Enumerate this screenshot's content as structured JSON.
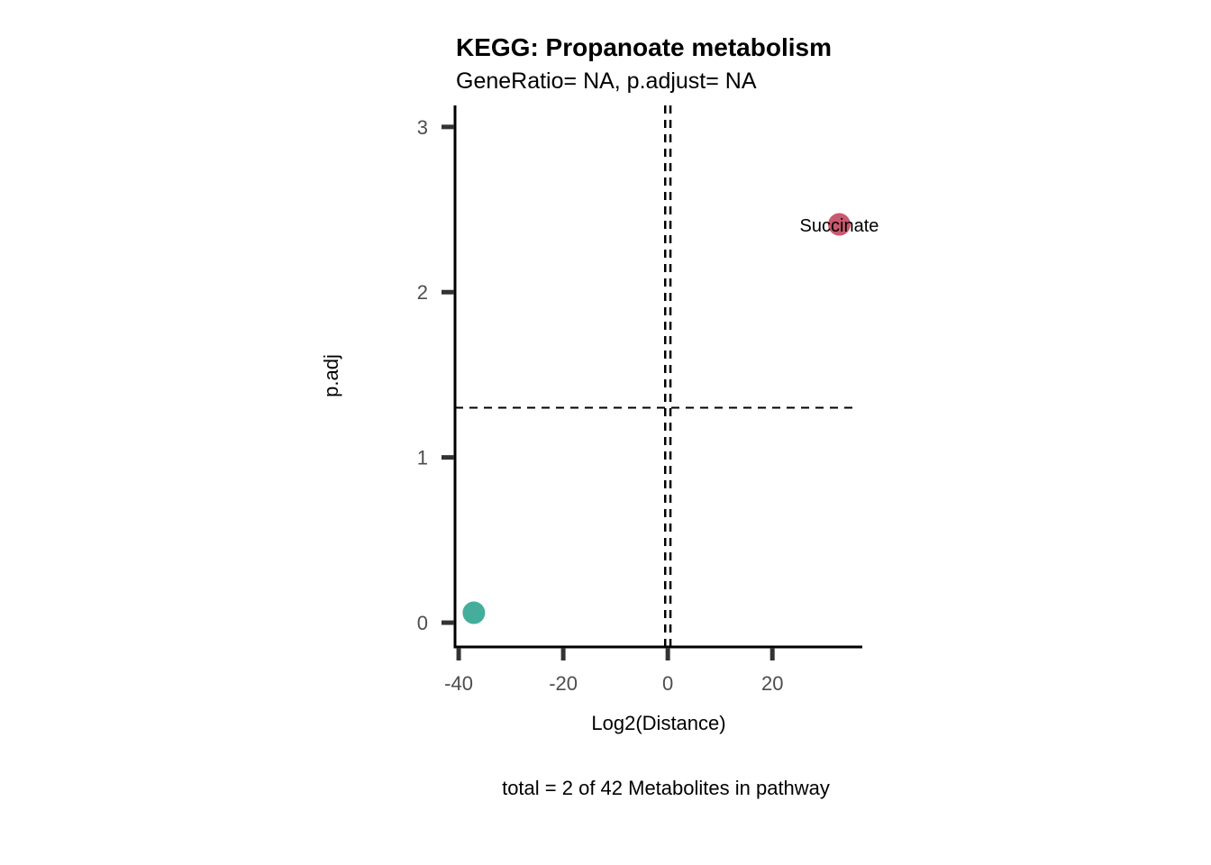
{
  "chart_data": {
    "type": "scatter",
    "title": "KEGG: Propanoate metabolism",
    "subtitle": "GeneRatio= NA, p.adjust= NA",
    "xlabel": "Log2(Distance)",
    "ylabel": "p.adj",
    "caption": "total = 2 of 42 Metabolites in pathway",
    "xlim": [
      -40.7,
      37.2
    ],
    "ylim": [
      -0.147,
      3.13
    ],
    "xticks": [
      -40,
      -20,
      0,
      20
    ],
    "xtick_labels": [
      "-40",
      "-20",
      "0",
      "20"
    ],
    "yticks": [
      0,
      1,
      2,
      3
    ],
    "ytick_labels": [
      "0",
      "1",
      "2",
      "3"
    ],
    "grid": false,
    "hlines": [
      1.301
    ],
    "vlines": [
      -0.5,
      0.5
    ],
    "points": [
      {
        "x": -37.1,
        "y": 0.06,
        "label": "",
        "color": "#45ad9b"
      },
      {
        "x": 32.8,
        "y": 2.41,
        "label": "Succinate",
        "color": "#c9596e"
      }
    ]
  }
}
